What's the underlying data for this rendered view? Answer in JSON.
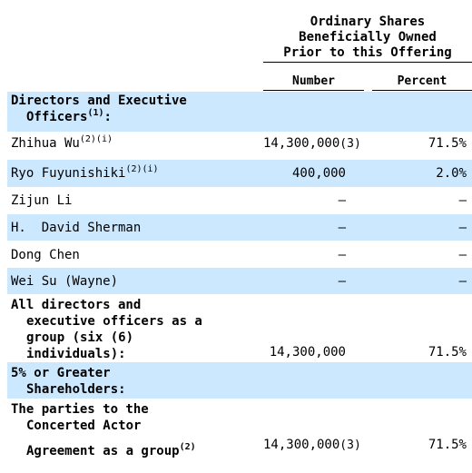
{
  "header": {
    "line1": "Ordinary Shares",
    "line2": "Beneficially Owned",
    "line3": "Prior to this Offering",
    "col_number": "Number",
    "col_percent": "Percent"
  },
  "sections": {
    "directors_heading_a": "Directors and Executive",
    "directors_heading_b": "Officers",
    "directors_heading_sup": "(1)",
    "directors_heading_colon": ":",
    "holders_heading_a": "5% or Greater",
    "holders_heading_b": "Shareholders:"
  },
  "rows": [
    {
      "name": "Zhihua Wu",
      "sup": "(2)(i)",
      "number": "14,300,000",
      "number_sup": "(3)",
      "percent": "71.5%"
    },
    {
      "name": "Ryo Fuyunishiki",
      "sup": "(2)(i)",
      "number": "400,000",
      "number_sup": "",
      "percent": "2.0%"
    },
    {
      "name": "Zijun Li",
      "sup": "",
      "number": "—",
      "number_sup": "",
      "percent": "—"
    },
    {
      "name": "H.  David Sherman",
      "sup": "",
      "number": "—",
      "number_sup": "",
      "percent": "—"
    },
    {
      "name": "Dong Chen",
      "sup": "",
      "number": "—",
      "number_sup": "",
      "percent": "—"
    },
    {
      "name": "Wei Su (Wayne)",
      "sup": "",
      "number": "—",
      "number_sup": "",
      "percent": "—"
    }
  ],
  "group_row": {
    "line1": "All directors and",
    "line2": "executive officers as a",
    "line3": "group (six (6)",
    "line4": "individuals):",
    "number": "14,300,000",
    "percent": "71.5%"
  },
  "concert_row": {
    "line1": "The parties to the",
    "line2": "Concerted Actor",
    "line3": "Agreement as a group",
    "line3_sup": "(2)",
    "number": "14,300,000",
    "number_sup": "(3)",
    "percent": "71.5%"
  },
  "colors": {
    "band": "#cce8ff",
    "text": "#000000"
  }
}
